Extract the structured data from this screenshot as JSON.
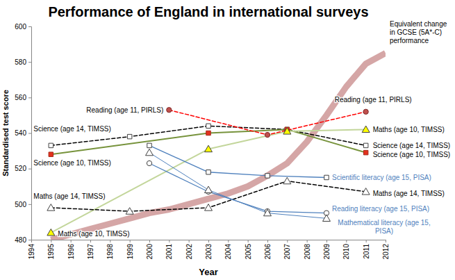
{
  "chart_data": {
    "type": "line",
    "title": "Performance of England in international surveys",
    "x_label": "Year",
    "y_label": "Standardised test score",
    "xlim": [
      1994,
      2012
    ],
    "xticks": [
      1994,
      1995,
      1996,
      1997,
      1998,
      1999,
      2000,
      2001,
      2002,
      2003,
      2004,
      2005,
      2006,
      2007,
      2008,
      2009,
      2010,
      2011,
      2012
    ],
    "ylim": [
      480,
      600
    ],
    "yticks": [
      480,
      500,
      520,
      540,
      560,
      580,
      600
    ],
    "grid": false,
    "series": [
      {
        "name": "Equivalent change in GCSE (5A*-C) performance",
        "color": "#d5a6a6",
        "line_style": "solid",
        "marker": "none",
        "x": [
          1995,
          1996,
          1997,
          1998,
          1999,
          2000,
          2001,
          2002,
          2003,
          2004,
          2005,
          2006,
          2007,
          2008,
          2009,
          2010,
          2011,
          2012
        ],
        "values": [
          480,
          483,
          486,
          489,
          492,
          495,
          497,
          500,
          503,
          506,
          510,
          516,
          523,
          535,
          550,
          566,
          579,
          585
        ]
      },
      {
        "name": "Science (age 14, TIMSS)",
        "color": "#000000",
        "line_style": "dashed",
        "marker": "open-square",
        "x": [
          1995,
          1999,
          2003,
          2007,
          2011
        ],
        "values": [
          533,
          538,
          544,
          542,
          533
        ]
      },
      {
        "name": "Science (age 10, TIMSS)",
        "color": "#77933c",
        "line_style": "solid",
        "marker": "square",
        "x": [
          1995,
          2003,
          2007,
          2011
        ],
        "values": [
          528,
          540,
          542,
          529
        ]
      },
      {
        "name": "Maths (age 10, TIMSS)",
        "color": "#c3d69b",
        "line_style": "solid",
        "marker": "triangle",
        "x": [
          1995,
          2003,
          2007,
          2011
        ],
        "values": [
          484,
          531,
          541,
          542
        ]
      },
      {
        "name": "Maths (age 14, TIMSS)",
        "color": "#000000",
        "line_style": "dashed",
        "marker": "open-triangle",
        "x": [
          1995,
          1999,
          2003,
          2007,
          2011
        ],
        "values": [
          498,
          496,
          498,
          513,
          507
        ]
      },
      {
        "name": "Reading (age 11, PIRLS)",
        "color": "#ff0000",
        "line_style": "dashed",
        "marker": "circle",
        "x": [
          2001,
          2006,
          2011
        ],
        "values": [
          553,
          539,
          552
        ]
      },
      {
        "name": "Scientific literacy (age 15, PISA)",
        "color": "#4f81bd",
        "line_style": "solid",
        "marker": "open-square",
        "x": [
          2000,
          2003,
          2006,
          2009
        ],
        "values": [
          533,
          518,
          516,
          515
        ]
      },
      {
        "name": "Reading literacy (age 15, PISA)",
        "color": "#4f81bd",
        "line_style": "solid",
        "marker": "open-circle",
        "x": [
          2000,
          2003,
          2006,
          2009
        ],
        "values": [
          523,
          507,
          496,
          495
        ]
      },
      {
        "name": "Mathematical literacy (age 15, PISA)",
        "color": "#4f81bd",
        "line_style": "solid",
        "marker": "open-triangle",
        "x": [
          2000,
          2003,
          2006,
          2009
        ],
        "values": [
          529,
          508,
          495,
          492
        ]
      }
    ]
  }
}
